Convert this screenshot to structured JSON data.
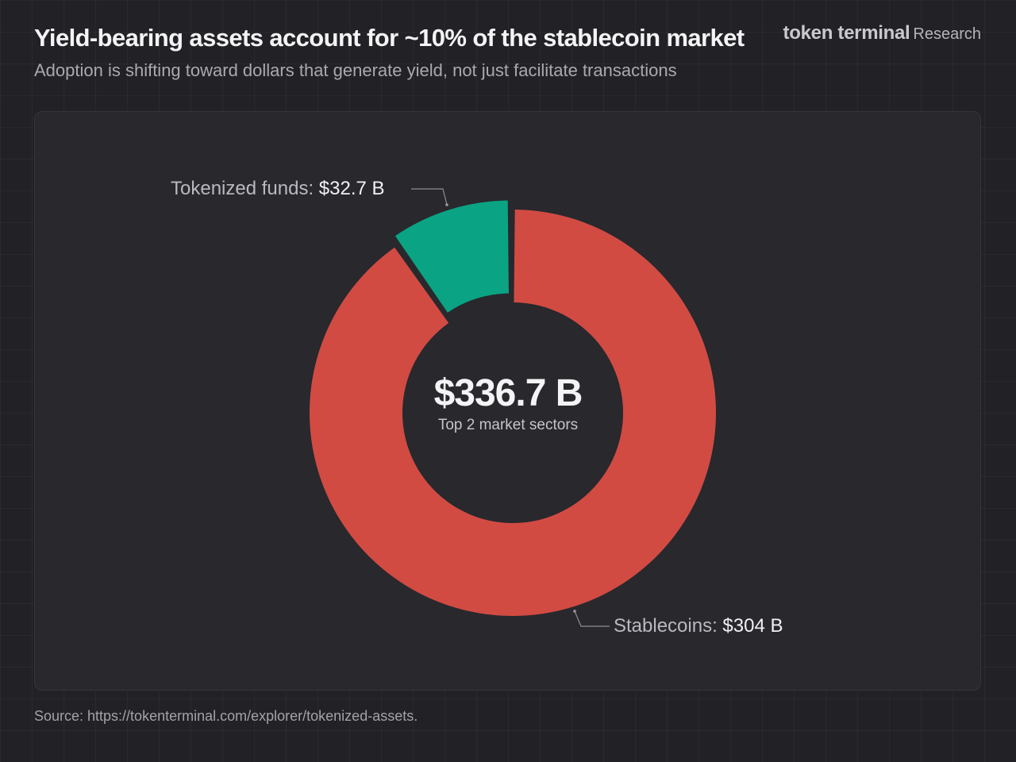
{
  "header": {
    "title": "Yield-bearing assets account for ~10% of the stablecoin market",
    "subtitle": "Adoption is shifting toward dollars that generate yield, not just facilitate transactions"
  },
  "brand": {
    "name": "token terminal",
    "suffix": "Research"
  },
  "chart_data": {
    "type": "pie",
    "title": "Yield-bearing assets account for ~10% of the stablecoin market",
    "subtitle": "Adoption is shifting toward dollars that generate yield, not just facilitate transactions",
    "total_label": "$336.7 B",
    "total_caption": "Top 2 market sectors",
    "unit": "B USD",
    "slices": [
      {
        "name": "Tokenized funds",
        "value": 32.7,
        "label": "Tokenized funds:",
        "value_label": "$32.7 B",
        "color": "#0aa383",
        "exploded": true
      },
      {
        "name": "Stablecoins",
        "value": 304,
        "label": "Stablecoins:",
        "value_label": "$304 B",
        "color": "#d14b43"
      }
    ]
  },
  "footer": {
    "source": "Source: https://tokenterminal.com/explorer/tokenized-assets."
  },
  "colors": {
    "background": "#222226",
    "panel": "#28282d",
    "stablecoins": "#d14b43",
    "tokenized_funds": "#0aa383"
  }
}
